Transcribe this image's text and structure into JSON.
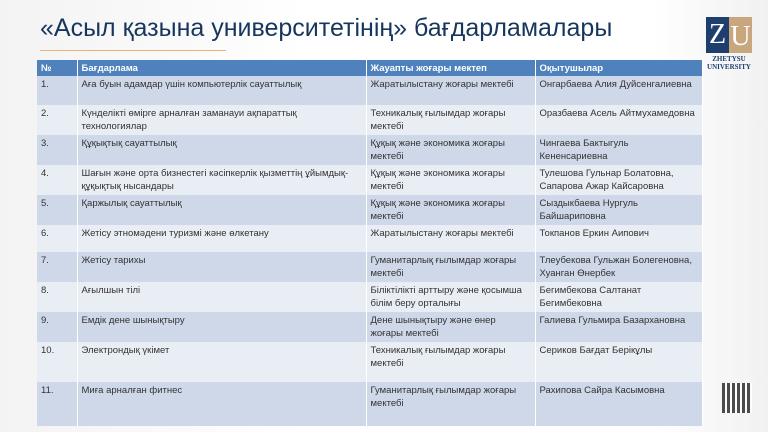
{
  "title": "«Асыл қазына университетінің» бағдарламалары",
  "logo": {
    "letters": "ZU",
    "text": "ZHETYSU UNIVERSITY"
  },
  "table": {
    "headers": [
      "№",
      "Бағдарлама",
      "Жауапты жоғары мектеп",
      "Оқытушылар"
    ],
    "rows": [
      [
        "1.",
        "Аға буын адамдар үшін компьютерлік сауаттылық",
        "Жаратылыстану жоғары мектебі",
        "Онгарбаева Алия Дуйсенгалиевна"
      ],
      [
        "2.",
        "Күнделікті өмірге арналған заманауи ақпараттық технологиялар",
        "Техникалық ғылымдар жоғары мектебі",
        "Оразбаева Асель Айтмухамедовна"
      ],
      [
        "3.",
        "Құқықтық сауаттылық",
        "Құқық және экономика жоғары мектебі",
        "Чингаева Бактыгуль Кененсариевна"
      ],
      [
        "4.",
        "Шағын және орта бизнестегі кәсіпкерлік қызметтің ұйымдық-құқықтық нысандары",
        "Құқық және экономика жоғары мектебі",
        "Тулешова Гульнар Болатовна, Сапарова Ажар Кайсаровна"
      ],
      [
        "5.",
        "Қаржылық сауаттылық",
        "Құқық және экономика жоғары мектебі",
        "Сыздыкбаева Нургуль Байшариповна"
      ],
      [
        "6.",
        "Жетісу этномәдени туризмі және өлкетану",
        "Жаратылыстану жоғары мектебі",
        "Токпанов Еркин Аипович"
      ],
      [
        "7.",
        "Жетісу тарихы",
        "Гуманитарлық ғылымдар жоғары мектебі",
        "Тлеубекова Гульжан Болегеновна, Хуанган Өнербек"
      ],
      [
        "8.",
        "Ағылшын тілі",
        "Біліктілікті арттыру және қосымша білім беру орталығы",
        "Бегимбекова Салтанат Бегимбековна"
      ],
      [
        "9.",
        "Емдік дене шынықтыру",
        "Дене шынықтыру және өнер жоғары мектебі",
        "Галиева Гульмира Базархановна"
      ],
      [
        "10.",
        "Электрондық үкімет",
        "Техникалық ғылымдар жоғары мектебі",
        "Сериков Бағдат Берікұлы"
      ],
      [
        "11.",
        "Миға арналған фитнес",
        "Гуманитарлық ғылымдар жоғары мектебі",
        "Рахипова Сайра Касымовна"
      ]
    ]
  },
  "colors": {
    "header": "#4f81bd",
    "title": "#17365d"
  }
}
